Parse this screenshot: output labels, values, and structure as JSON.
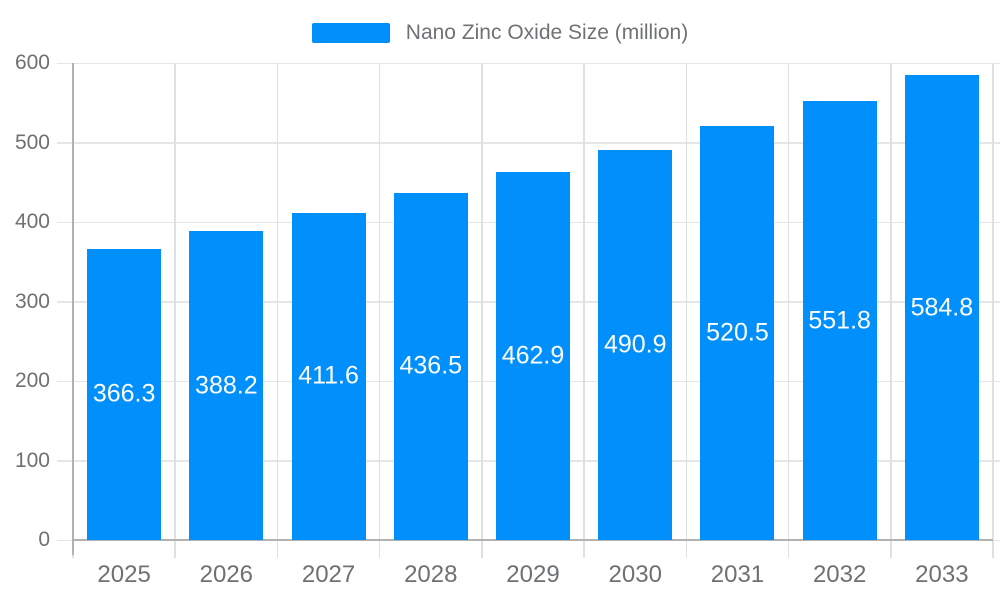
{
  "chart_data": {
    "type": "bar",
    "title": "Nano Zinc Oxide Size (million)",
    "categories": [
      "2025",
      "2026",
      "2027",
      "2028",
      "2029",
      "2030",
      "2031",
      "2032",
      "2033"
    ],
    "values": [
      366.3,
      388.2,
      411.6,
      436.5,
      462.9,
      490.9,
      520.5,
      551.8,
      584.8
    ],
    "value_labels_position": "inside-center",
    "xlabel": "",
    "ylabel": "",
    "ylim": [
      0,
      600
    ],
    "yticks": [
      0,
      100,
      200,
      300,
      400,
      500,
      600
    ],
    "grid": true,
    "legend": {
      "label": "Nano Zinc Oxide Size (million)",
      "position": "top-center"
    },
    "colors": {
      "bar": "#008FFB",
      "value_label_text": "#FFFFFF",
      "axis_label_text": "#6E7173",
      "legend_text": "#6F7275",
      "grid_line": "#E6E6E6",
      "tick_line": "#E0E0E0",
      "axis_line": "#B1B1B1",
      "background": "#FFFFFF"
    }
  }
}
